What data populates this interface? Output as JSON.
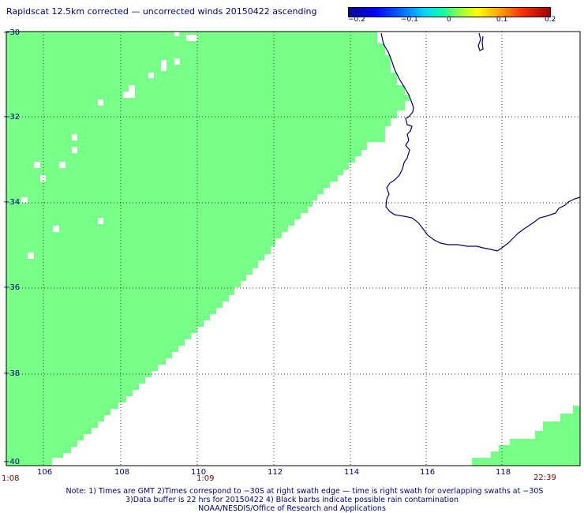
{
  "title": "Rapidscat 12.5km corrected — uncorrected winds 20150422 ascending",
  "colorbar": {
    "ticks": [
      "−0.2",
      "−0.1",
      "0",
      "0.1",
      "0.2"
    ]
  },
  "axes": {
    "lat_labels": [
      "−30",
      "−32",
      "−34",
      "−36",
      "−38",
      "−40"
    ],
    "lon_labels": [
      "106",
      "108",
      "110",
      "112",
      "114",
      "116",
      "118"
    ]
  },
  "times": {
    "left": "1:08",
    "mid": "1:09",
    "right": "22:39"
  },
  "footer": {
    "line1": "Note: 1) Times are GMT 2)Times correspond to −30S at right swath edge — time is right swath for overlapping swaths at −30S",
    "line2": "3)Data buffer is 22 hrs for 20150422 4) Black barbs indicate possible rain contamination",
    "line3": "NOAA/NESDIS/Office of Research and Applications"
  },
  "colors": {
    "swath_fill": "#77ff88",
    "coastline": "#00007a",
    "text": "#00007a",
    "time_text": "#7a0000"
  }
}
